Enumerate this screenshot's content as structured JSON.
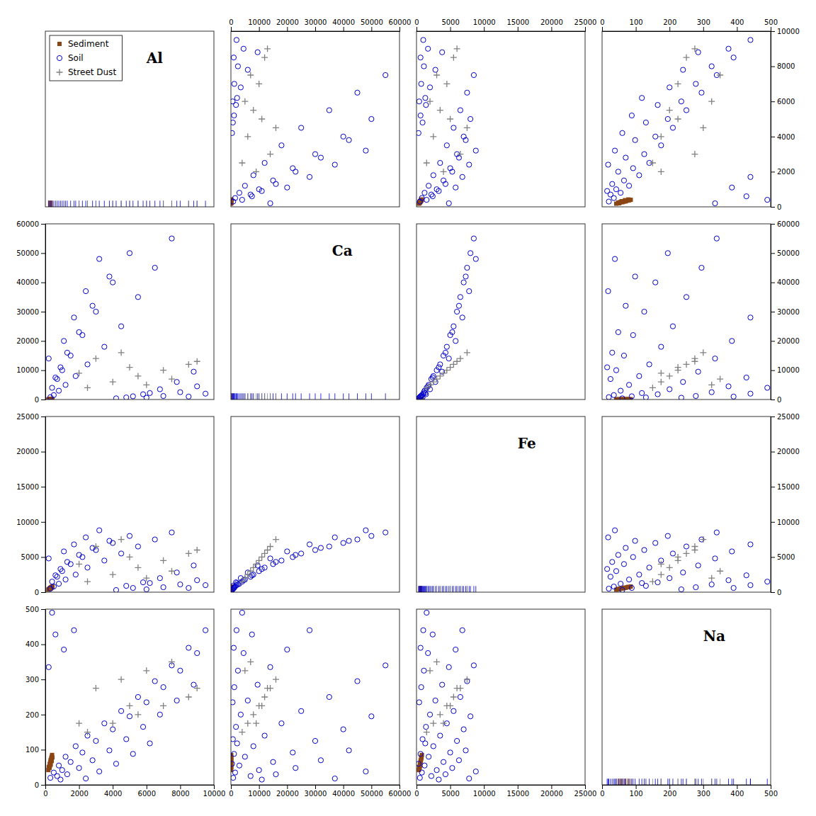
{
  "chart_data": {
    "type": "scatter_matrix",
    "legend": "upper left",
    "variables": [
      {
        "name": "Al",
        "range": [
          0,
          10000
        ],
        "ticks": [
          0,
          2000,
          4000,
          6000,
          8000,
          10000
        ]
      },
      {
        "name": "Ca",
        "range": [
          0,
          60000
        ],
        "ticks": [
          0,
          10000,
          20000,
          30000,
          40000,
          50000,
          60000
        ]
      },
      {
        "name": "Fe",
        "range": [
          0,
          25000
        ],
        "ticks": [
          0,
          5000,
          10000,
          15000,
          20000,
          25000
        ]
      },
      {
        "name": "Na",
        "range": [
          0,
          500
        ],
        "ticks": [
          0,
          100,
          200,
          300,
          400,
          500
        ]
      }
    ],
    "series": [
      {
        "name": "Sediment",
        "color": "#8B4513",
        "marker": "square",
        "values": {
          "Al": [
            200,
            300,
            280,
            350,
            400,
            250,
            320,
            380,
            420,
            180,
            230,
            260,
            310,
            370
          ],
          "Ca": [
            60,
            80,
            70,
            90,
            100,
            65,
            75,
            85,
            95,
            55,
            72,
            78,
            88,
            92
          ],
          "Fe": [
            400,
            600,
            500,
            700,
            800,
            450,
            550,
            650,
            750,
            350,
            480,
            520,
            620,
            720
          ],
          "Na": [
            50,
            65,
            55,
            75,
            85,
            48,
            58,
            68,
            78,
            42,
            52,
            60,
            70,
            80
          ]
        }
      },
      {
        "name": "Soil",
        "color": "#0000CD",
        "marker": "hollow-circle",
        "values": {
          "Al": [
            300,
            500,
            800,
            1200,
            1800,
            2500,
            3500,
            4500,
            5500,
            6500,
            7500,
            8500,
            9500,
            400,
            700,
            1000,
            1500,
            2200,
            3000,
            4000,
            5000,
            6000,
            7000,
            8000,
            9000,
            600,
            900,
            1300,
            2000,
            2800,
            3800,
            4800,
            5800,
            6800,
            7800,
            8800,
            200,
            1100,
            1700,
            2400,
            3200,
            4200,
            5200,
            6200
          ],
          "Ca": [
            800,
            1500,
            3000,
            5000,
            8000,
            12000,
            18000,
            25000,
            35000,
            45000,
            55000,
            1000,
            2000,
            4000,
            7000,
            10000,
            15000,
            22000,
            30000,
            40000,
            50000,
            600,
            1200,
            2500,
            4500,
            7500,
            11000,
            16000,
            23000,
            32000,
            42000,
            700,
            1800,
            3500,
            6000,
            9500,
            14000,
            20000,
            28000,
            37000,
            48000,
            400,
            1100,
            2200
          ],
          "Fe": [
            500,
            800,
            1200,
            1800,
            2500,
            3500,
            4500,
            5500,
            6500,
            7500,
            8500,
            600,
            1000,
            1500,
            2200,
            3000,
            4000,
            5000,
            6000,
            7000,
            8000,
            400,
            700,
            1100,
            1700,
            2400,
            3300,
            4300,
            5300,
            6300,
            7300,
            900,
            1400,
            2000,
            2800,
            3800,
            4800,
            5800,
            6800,
            7800,
            8800,
            300,
            600,
            1300
          ],
          "Na": [
            20,
            35,
            55,
            80,
            110,
            140,
            175,
            210,
            250,
            295,
            340,
            390,
            440,
            490,
            25,
            42,
            65,
            92,
            125,
            158,
            195,
            235,
            278,
            325,
            375,
            428,
            15,
            30,
            48,
            70,
            98,
            130,
            165,
            200,
            240,
            285,
            335,
            385,
            440,
            18,
            38,
            60,
            88,
            118
          ]
        }
      },
      {
        "name": "Street Dust",
        "color": "#808080",
        "marker": "plus",
        "values": {
          "Al": [
            2500,
            4000,
            5500,
            7000,
            8500,
            3000,
            4500,
            6000,
            7500,
            2000,
            5000,
            9000
          ],
          "Ca": [
            4000,
            6000,
            8000,
            10000,
            12000,
            14000,
            16000,
            5000,
            7000,
            9000,
            11000,
            13000
          ],
          "Fe": [
            1500,
            2500,
            3500,
            4500,
            5500,
            6500,
            7500,
            2000,
            3000,
            4000,
            5000,
            6000
          ],
          "Na": [
            150,
            175,
            200,
            225,
            250,
            275,
            300,
            325,
            350,
            175,
            225,
            275
          ]
        }
      }
    ]
  }
}
